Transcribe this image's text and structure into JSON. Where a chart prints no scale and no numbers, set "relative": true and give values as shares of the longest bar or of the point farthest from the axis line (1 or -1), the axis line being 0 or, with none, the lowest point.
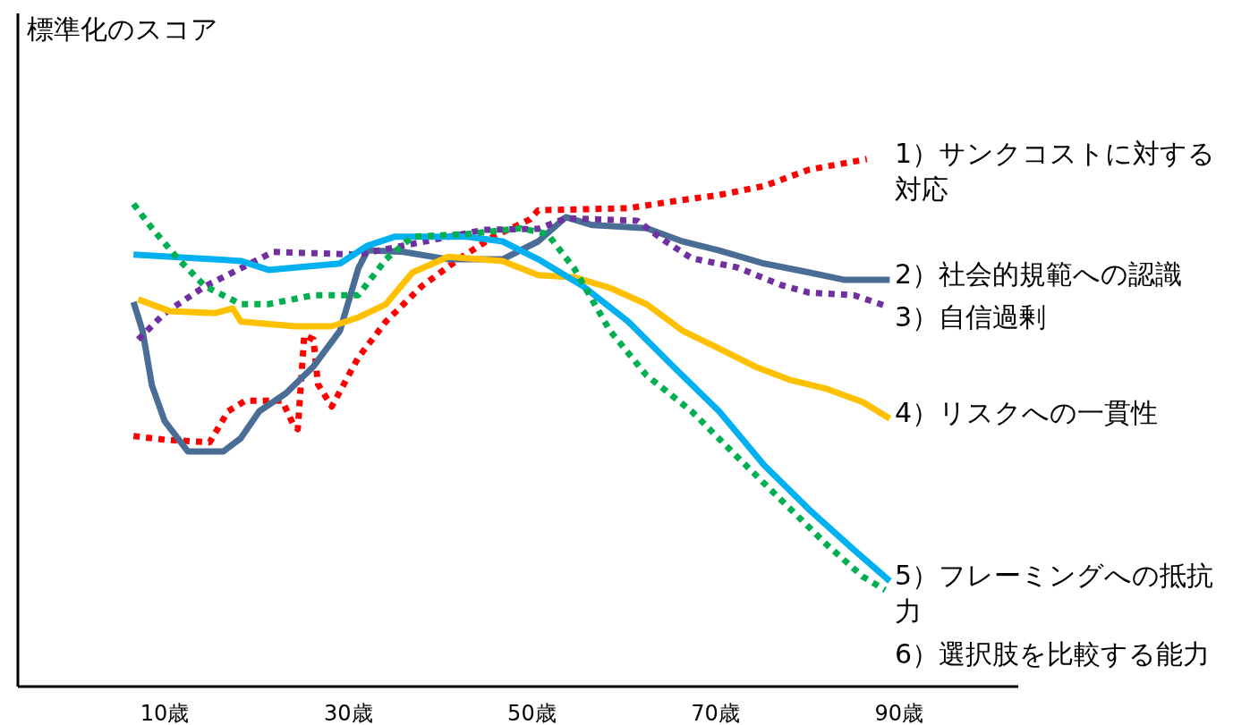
{
  "chart_data": {
    "type": "line",
    "relative": true,
    "ylabel": "標準化のスコア",
    "xlim": [
      -6,
      103
    ],
    "xticks": [
      {
        "value": 10,
        "label": "10歳"
      },
      {
        "value": 30,
        "label": "30歳"
      },
      {
        "value": 50,
        "label": "50歳"
      },
      {
        "value": 70,
        "label": "70歳"
      },
      {
        "value": 90,
        "label": "90歳"
      }
    ],
    "legend": false,
    "grid": false,
    "series": [
      {
        "name": "1）サンクコストに対する対応",
        "color": "#ff0000",
        "line_style": "dotted",
        "x": [
          6.6,
          10,
          14.9,
          16.9,
          18.8,
          22.8,
          24,
          24.5,
          25.2,
          26.2,
          26.7,
          28.2,
          31.1,
          34.1,
          38,
          42,
          45.8,
          49.8,
          50.7,
          60.5,
          65.4,
          70.4,
          75.3,
          80.2,
          86.5
        ],
        "values": [
          0.475,
          0.468,
          0.463,
          0.522,
          0.542,
          0.542,
          0.497,
          0.488,
          0.666,
          0.658,
          0.573,
          0.531,
          0.624,
          0.692,
          0.759,
          0.81,
          0.853,
          0.886,
          0.903,
          0.907,
          0.92,
          0.932,
          0.949,
          0.98,
          1.0
        ]
      },
      {
        "name": "2）社会的規範への認識",
        "color": "#4a6d96",
        "line_style": "solid",
        "x": [
          6.6,
          7.6,
          8.6,
          10,
          12.5,
          16.4,
          18.3,
          20.3,
          23.2,
          26.2,
          29.1,
          31.1,
          32.1,
          36,
          40.9,
          46.8,
          50.7,
          53.7,
          56.6,
          62.5,
          66.4,
          70.4,
          75.3,
          80.2,
          84.1,
          89
        ],
        "values": [
          0.729,
          0.673,
          0.571,
          0.503,
          0.446,
          0.446,
          0.471,
          0.522,
          0.556,
          0.607,
          0.675,
          0.793,
          0.827,
          0.824,
          0.81,
          0.81,
          0.844,
          0.89,
          0.875,
          0.869,
          0.844,
          0.827,
          0.802,
          0.785,
          0.771,
          0.771
        ]
      },
      {
        "name": "3）自信過剰",
        "color": "#7030a0",
        "line_style": "dotted",
        "x": [
          7.1,
          10,
          14.4,
          18.3,
          21.8,
          31.1,
          36,
          44.8,
          50.7,
          53.7,
          61.5,
          64.4,
          67.4,
          72.3,
          77.2,
          80.2,
          85.1,
          88.5
        ],
        "values": [
          0.658,
          0.708,
          0.759,
          0.793,
          0.824,
          0.819,
          0.836,
          0.866,
          0.868,
          0.888,
          0.883,
          0.846,
          0.812,
          0.795,
          0.761,
          0.747,
          0.742,
          0.722
        ]
      },
      {
        "name": "4）リスクへの一貫性",
        "color": "#ffc000",
        "line_style": "solid",
        "x": [
          7.1,
          10.5,
          15.4,
          17.4,
          18.3,
          24.2,
          28.2,
          31.1,
          34.1,
          37,
          40.9,
          46.8,
          50.7,
          54.6,
          58.5,
          62.5,
          66.4,
          70.4,
          74.3,
          78.2,
          82.2,
          86.1,
          89
        ],
        "values": [
          0.734,
          0.712,
          0.708,
          0.717,
          0.692,
          0.683,
          0.683,
          0.7,
          0.725,
          0.785,
          0.815,
          0.807,
          0.78,
          0.776,
          0.756,
          0.725,
          0.675,
          0.641,
          0.607,
          0.581,
          0.564,
          0.539,
          0.508
        ]
      },
      {
        "name": "5）フレーミングへの抵抗力",
        "color": "#00b0f0",
        "line_style": "solid",
        "x": [
          6.6,
          11.5,
          18.3,
          21.3,
          29.1,
          32.1,
          35.1,
          42.9,
          46.8,
          50.7,
          55.6,
          60.5,
          65.4,
          70.4,
          75.3,
          80.2,
          85.1,
          89
        ],
        "values": [
          0.819,
          0.814,
          0.807,
          0.79,
          0.802,
          0.836,
          0.853,
          0.853,
          0.844,
          0.81,
          0.759,
          0.692,
          0.607,
          0.522,
          0.42,
          0.336,
          0.259,
          0.2
        ]
      },
      {
        "name": "6）選択肢を比較する能力",
        "color": "#00b050",
        "line_style": "dotted",
        "x": [
          6.6,
          8.6,
          11.5,
          14.4,
          18.3,
          21.3,
          26.2,
          31.1,
          34.1,
          37,
          42.9,
          48.8,
          51.7,
          54.6,
          58.5,
          62.5,
          67.4,
          72.3,
          77.2,
          82.2,
          86.1,
          88.5
        ],
        "values": [
          0.915,
          0.869,
          0.81,
          0.759,
          0.725,
          0.725,
          0.742,
          0.742,
          0.81,
          0.853,
          0.858,
          0.869,
          0.858,
          0.793,
          0.675,
          0.59,
          0.522,
          0.437,
          0.353,
          0.268,
          0.208,
          0.183
        ]
      }
    ]
  }
}
